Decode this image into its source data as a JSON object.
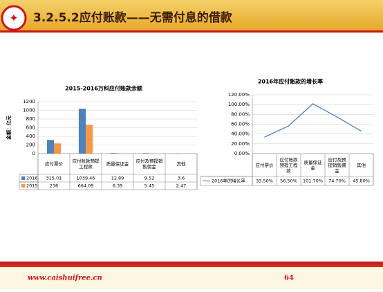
{
  "header": {
    "title": "3.2.5.2应付账款——无需付息的借款"
  },
  "footer": {
    "url": "www.caishuifree.cn",
    "page": "64"
  },
  "chart_data": [
    {
      "type": "bar",
      "title": "2015-2016万科应付账款余额",
      "y_label": "金额：亿元",
      "categories": [
        "应付票价",
        "应付账款预提工程款",
        "质量保证金",
        "应付及预提销售佣金",
        "其他"
      ],
      "series": [
        {
          "name": "2016",
          "color": "#4f81bd",
          "values": [
            315.01,
            1039.46,
            12.89,
            9.52,
            3.6
          ]
        },
        {
          "name": "2015",
          "color": "#f79646",
          "values": [
            236,
            664.09,
            6.39,
            5.45,
            2.47
          ]
        }
      ],
      "ylim": [
        0,
        1200
      ],
      "yticks": [
        0,
        200,
        400,
        600,
        800,
        1000,
        1200
      ],
      "grid": true
    },
    {
      "type": "line",
      "title": "2016年应付账款的增长率",
      "categories": [
        "应付票价",
        "应付账款预提工程款",
        "质量保证金",
        "应付及预提销售佣金",
        "其他"
      ],
      "series": [
        {
          "name": "2016年的增长率",
          "color": "#4f81bd",
          "values": [
            33.5,
            56.5,
            101.7,
            74.7,
            45.8
          ],
          "value_labels": [
            "33.50%",
            "56.50%",
            "101.70%",
            "74.70%",
            "45.80%"
          ]
        }
      ],
      "ylim": [
        0,
        120
      ],
      "yticks": [
        {
          "value": 0,
          "label": "0.00%"
        },
        {
          "value": 20,
          "label": "20.00%"
        },
        {
          "value": 40,
          "label": "40.00%"
        },
        {
          "value": 60,
          "label": "60.00%"
        },
        {
          "value": 80,
          "label": "80.00%"
        },
        {
          "value": 100,
          "label": "100.00%"
        },
        {
          "value": 120,
          "label": "120.00%"
        }
      ],
      "grid": true
    }
  ]
}
